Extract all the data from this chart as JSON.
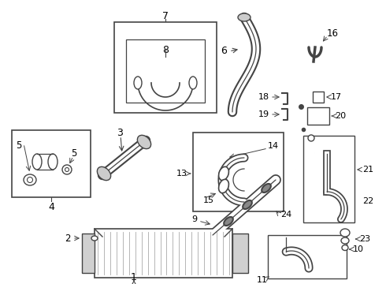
{
  "background_color": "#ffffff",
  "line_color": "#444444",
  "text_color": "#000000",
  "font_size": 8.5,
  "dpi": 100,
  "fig_width": 4.9,
  "fig_height": 3.6
}
